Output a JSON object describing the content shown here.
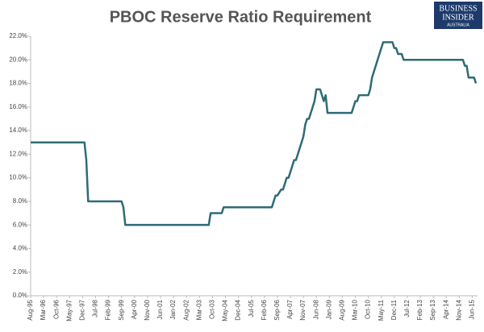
{
  "chart_data": {
    "type": "line",
    "title": "PBOC Reserve Ratio Requirement",
    "logo": [
      "BUSINESS",
      "INSIDER",
      "AUSTRALIA"
    ],
    "color": "#2e6b76",
    "grid": false,
    "ylim": [
      0,
      22
    ],
    "yticks": [
      {
        "value": 0,
        "label": "0.0%"
      },
      {
        "value": 2,
        "label": "2.0%"
      },
      {
        "value": 4,
        "label": "4.0%"
      },
      {
        "value": 6,
        "label": "6.0%"
      },
      {
        "value": 8,
        "label": "8.0%"
      },
      {
        "value": 10,
        "label": "10.0%"
      },
      {
        "value": 12,
        "label": "12.0%"
      },
      {
        "value": 14,
        "label": "14.0%"
      },
      {
        "value": 16,
        "label": "16.0%"
      },
      {
        "value": 18,
        "label": "18.0%"
      },
      {
        "value": 20,
        "label": "20.0%"
      },
      {
        "value": 22,
        "label": "22.0%"
      }
    ],
    "categories": [
      "Aug-95",
      null,
      null,
      null,
      null,
      null,
      null,
      "Mar-96",
      null,
      null,
      null,
      null,
      null,
      null,
      "Oct-96",
      null,
      null,
      null,
      null,
      null,
      null,
      "May-97",
      null,
      null,
      null,
      null,
      null,
      null,
      "Dec-97",
      null,
      null,
      null,
      null,
      null,
      null,
      "Jul-98",
      null,
      null,
      null,
      null,
      null,
      null,
      "Feb-99",
      null,
      null,
      null,
      null,
      null,
      null,
      "Sep-99",
      null,
      null,
      null,
      null,
      null,
      null,
      "Apr-00",
      null,
      null,
      null,
      null,
      null,
      null,
      "Nov-00",
      null,
      null,
      null,
      null,
      null,
      null,
      "Jun-01",
      null,
      null,
      null,
      null,
      null,
      null,
      "Jan-02",
      null,
      null,
      null,
      null,
      null,
      null,
      "Aug-02",
      null,
      null,
      null,
      null,
      null,
      null,
      "Mar-03",
      null,
      null,
      null,
      null,
      null,
      null,
      "Oct-03",
      null,
      null,
      null,
      null,
      null,
      null,
      "May-04",
      null,
      null,
      null,
      null,
      null,
      null,
      "Dec-04",
      null,
      null,
      null,
      null,
      null,
      null,
      "Jul-05",
      null,
      null,
      null,
      null,
      null,
      null,
      "Feb-06",
      null,
      null,
      null,
      null,
      null,
      null,
      "Sep-06",
      null,
      null,
      null,
      null,
      null,
      null,
      "Apr-07",
      null,
      null,
      null,
      null,
      null,
      null,
      "Nov-07",
      null,
      null,
      null,
      null,
      null,
      null,
      "Jun-08",
      null,
      null,
      null,
      null,
      null,
      null,
      "Jan-09",
      null,
      null,
      null,
      null,
      null,
      null,
      "Aug-09",
      null,
      null,
      null,
      null,
      null,
      null,
      "Mar-10",
      null,
      null,
      null,
      null,
      null,
      null,
      "Oct-10",
      null,
      null,
      null,
      null,
      null,
      null,
      "May-11",
      null,
      null,
      null,
      null,
      null,
      null,
      "Dec-11",
      null,
      null,
      null,
      null,
      null,
      null,
      "Jul-12",
      null,
      null,
      null,
      null,
      null,
      null,
      "Feb-13",
      null,
      null,
      null,
      null,
      null,
      null,
      "Sep-13",
      null,
      null,
      null,
      null,
      null,
      null,
      "Apr-14",
      null,
      null,
      null,
      null,
      null,
      null,
      "Nov-14",
      null,
      null,
      null,
      null,
      null,
      null,
      "Jun-15",
      null,
      null
    ],
    "values": [
      13,
      13,
      13,
      13,
      13,
      13,
      13,
      13,
      13,
      13,
      13,
      13,
      13,
      13,
      13,
      13,
      13,
      13,
      13,
      13,
      13,
      13,
      13,
      13,
      13,
      13,
      13,
      13,
      13,
      13,
      11.5,
      8,
      8,
      8,
      8,
      8,
      8,
      8,
      8,
      8,
      8,
      8,
      8,
      8,
      8,
      8,
      8,
      8,
      8,
      8,
      7.5,
      6,
      6,
      6,
      6,
      6,
      6,
      6,
      6,
      6,
      6,
      6,
      6,
      6,
      6,
      6,
      6,
      6,
      6,
      6,
      6,
      6,
      6,
      6,
      6,
      6,
      6,
      6,
      6,
      6,
      6,
      6,
      6,
      6,
      6,
      6,
      6,
      6,
      6,
      6,
      6,
      6,
      6,
      6,
      6,
      6,
      6,
      7,
      7,
      7,
      7,
      7,
      7,
      7,
      7.5,
      7.5,
      7.5,
      7.5,
      7.5,
      7.5,
      7.5,
      7.5,
      7.5,
      7.5,
      7.5,
      7.5,
      7.5,
      7.5,
      7.5,
      7.5,
      7.5,
      7.5,
      7.5,
      7.5,
      7.5,
      7.5,
      7.5,
      7.5,
      7.5,
      7.5,
      7.5,
      8,
      8.5,
      8.5,
      8.75,
      9,
      9,
      9.5,
      10,
      10,
      10.5,
      11,
      11.5,
      11.5,
      12,
      12.5,
      13,
      13.5,
      14.5,
      15,
      15,
      15.5,
      16,
      16.5,
      17.5,
      17.5,
      17.5,
      17,
      16.5,
      17,
      15.5,
      15.5,
      15.5,
      15.5,
      15.5,
      15.5,
      15.5,
      15.5,
      15.5,
      15.5,
      15.5,
      15.5,
      15.5,
      15.5,
      16,
      16.5,
      16.5,
      17,
      17,
      17,
      17,
      17,
      17,
      17.5,
      18.5,
      19,
      19.5,
      20,
      20.5,
      21,
      21.5,
      21.5,
      21.5,
      21.5,
      21.5,
      21.5,
      21,
      21,
      20.5,
      20.5,
      20.5,
      20,
      20,
      20,
      20,
      20,
      20,
      20,
      20,
      20,
      20,
      20,
      20,
      20,
      20,
      20,
      20,
      20,
      20,
      20,
      20,
      20,
      20,
      20,
      20,
      20,
      20,
      20,
      20,
      20,
      20,
      20,
      20,
      20,
      19.5,
      19.5,
      18.5,
      18.5,
      18.5,
      18.5,
      18
    ]
  }
}
